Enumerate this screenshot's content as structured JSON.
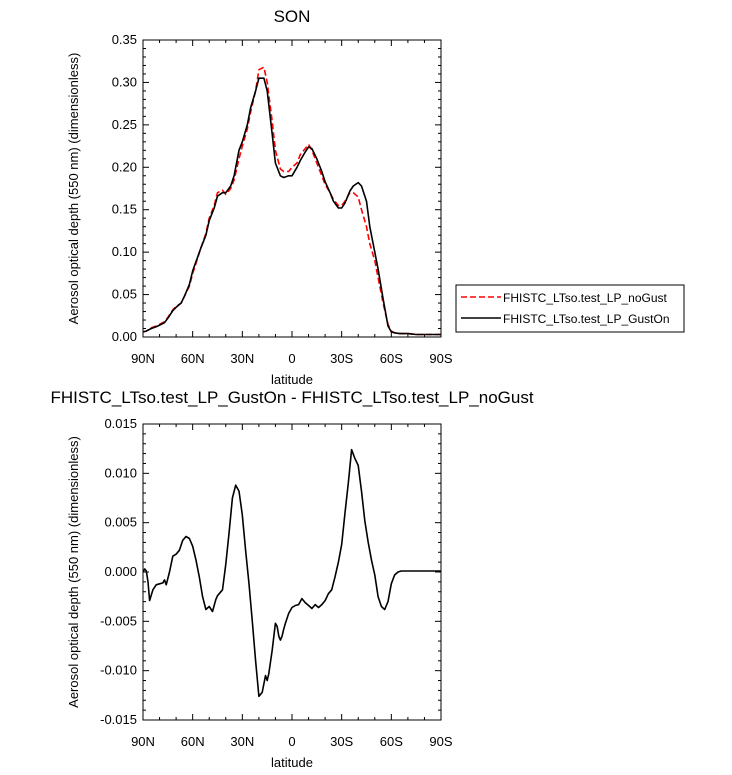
{
  "chart_data": [
    {
      "type": "line",
      "title": "SON",
      "xlabel": "latitude",
      "ylabel": "Aerosol optical depth (550 nm) (dimensionless)",
      "xlim": [
        90,
        -90
      ],
      "ylim": [
        0.0,
        0.35
      ],
      "xticks": [
        90,
        60,
        30,
        0,
        -30,
        -60,
        -90
      ],
      "xtick_labels": [
        "90N",
        "60N",
        "30N",
        "0",
        "30S",
        "60S",
        "90S"
      ],
      "yticks": [
        0.0,
        0.05,
        0.1,
        0.15,
        0.2,
        0.25,
        0.3,
        0.35
      ],
      "ytick_labels": [
        "0.00",
        "0.05",
        "0.10",
        "0.15",
        "0.20",
        "0.25",
        "0.30",
        "0.35"
      ],
      "legend_position": "right",
      "series": [
        {
          "name": "FHISTC_LTso.test_LP_noGust",
          "color": "#ff0000",
          "dash": "dashed",
          "x": [
            90,
            88,
            85,
            82,
            80,
            77,
            75,
            72,
            70,
            67,
            65,
            62,
            60,
            57,
            55,
            52,
            50,
            47,
            45,
            42,
            40,
            37,
            35,
            32,
            30,
            27,
            25,
            22,
            20,
            17,
            15,
            12,
            10,
            7,
            5,
            2,
            0,
            -3,
            -5,
            -8,
            -10,
            -12,
            -15,
            -18,
            -20,
            -23,
            -25,
            -28,
            -30,
            -32,
            -35,
            -37,
            -40,
            -42,
            -45,
            -47,
            -50,
            -52,
            -55,
            -58,
            -60,
            -62,
            -65,
            -70,
            -75,
            -80,
            -85,
            -90
          ],
          "y": [
            0.006,
            0.007,
            0.011,
            0.013,
            0.015,
            0.018,
            0.023,
            0.032,
            0.036,
            0.04,
            0.048,
            0.06,
            0.075,
            0.093,
            0.105,
            0.122,
            0.14,
            0.155,
            0.17,
            0.173,
            0.168,
            0.175,
            0.185,
            0.21,
            0.225,
            0.245,
            0.265,
            0.29,
            0.315,
            0.318,
            0.3,
            0.255,
            0.22,
            0.198,
            0.195,
            0.195,
            0.2,
            0.205,
            0.215,
            0.222,
            0.227,
            0.22,
            0.205,
            0.19,
            0.18,
            0.17,
            0.162,
            0.155,
            0.155,
            0.16,
            0.17,
            0.17,
            0.165,
            0.15,
            0.13,
            0.11,
            0.09,
            0.07,
            0.04,
            0.015,
            0.007,
            0.005,
            0.004,
            0.004,
            0.003,
            0.003,
            0.003,
            0.003
          ]
        },
        {
          "name": "FHISTC_LTso.test_LP_GustOn",
          "color": "#000000",
          "dash": "solid",
          "x": [
            90,
            88,
            85,
            82,
            80,
            77,
            75,
            72,
            70,
            67,
            65,
            62,
            60,
            57,
            55,
            52,
            50,
            47,
            45,
            42,
            40,
            37,
            35,
            32,
            30,
            27,
            25,
            22,
            20,
            17,
            15,
            12,
            10,
            7,
            5,
            2,
            0,
            -3,
            -5,
            -8,
            -10,
            -12,
            -15,
            -18,
            -20,
            -23,
            -25,
            -28,
            -30,
            -32,
            -35,
            -37,
            -40,
            -42,
            -45,
            -47,
            -50,
            -52,
            -55,
            -58,
            -60,
            -62,
            -65,
            -70,
            -75,
            -80,
            -85,
            -90
          ],
          "y": [
            0.006,
            0.007,
            0.01,
            0.012,
            0.014,
            0.017,
            0.022,
            0.031,
            0.035,
            0.04,
            0.048,
            0.062,
            0.078,
            0.094,
            0.105,
            0.12,
            0.137,
            0.152,
            0.166,
            0.17,
            0.17,
            0.178,
            0.19,
            0.22,
            0.23,
            0.25,
            0.27,
            0.29,
            0.305,
            0.305,
            0.29,
            0.24,
            0.205,
            0.19,
            0.188,
            0.19,
            0.19,
            0.2,
            0.208,
            0.218,
            0.224,
            0.222,
            0.21,
            0.195,
            0.183,
            0.17,
            0.16,
            0.152,
            0.152,
            0.158,
            0.172,
            0.178,
            0.182,
            0.178,
            0.16,
            0.13,
            0.1,
            0.08,
            0.045,
            0.013,
            0.006,
            0.005,
            0.004,
            0.004,
            0.003,
            0.003,
            0.003,
            0.003
          ]
        }
      ]
    },
    {
      "type": "line",
      "title": "FHISTC_LTso.test_LP_GustOn - FHISTC_LTso.test_LP_noGust",
      "xlabel": "latitude",
      "ylabel": "Aerosol optical depth (550 nm) (dimensionless)",
      "xlim": [
        90,
        -90
      ],
      "ylim": [
        -0.015,
        0.015
      ],
      "xticks": [
        90,
        60,
        30,
        0,
        -30,
        -60,
        -90
      ],
      "xtick_labels": [
        "90N",
        "60N",
        "30N",
        "0",
        "30S",
        "60S",
        "90S"
      ],
      "yticks": [
        -0.015,
        -0.01,
        -0.005,
        0.0,
        0.005,
        0.01,
        0.015
      ],
      "ytick_labels": [
        "-0.015",
        "-0.010",
        "-0.005",
        "0.000",
        "0.005",
        "0.010",
        "0.015"
      ],
      "series": [
        {
          "color": "#000000",
          "dash": "solid",
          "x": [
            90,
            89,
            88,
            87,
            86,
            84,
            82,
            80,
            78,
            77,
            76,
            74,
            72,
            70,
            68,
            66,
            64,
            62,
            60,
            58,
            56,
            54,
            52,
            50,
            48,
            46,
            45,
            44,
            42,
            40,
            38,
            36,
            34,
            32,
            30,
            28,
            26,
            24,
            22,
            20,
            18,
            16,
            15,
            14,
            12,
            10,
            9,
            8,
            7,
            6,
            5,
            4,
            2,
            0,
            -2,
            -4,
            -6,
            -8,
            -10,
            -12,
            -14,
            -16,
            -18,
            -20,
            -22,
            -24,
            -26,
            -28,
            -30,
            -32,
            -34,
            -36,
            -38,
            -40,
            -42,
            -44,
            -46,
            -48,
            -50,
            -52,
            -54,
            -56,
            -58,
            -60,
            -62,
            -64,
            -66,
            -68,
            -70,
            -75,
            -80,
            -85,
            -90
          ],
          "y": [
            0.0,
            0.0003,
            0.0001,
            -0.001,
            -0.0029,
            -0.0018,
            -0.0013,
            -0.0012,
            -0.0011,
            -0.0008,
            -0.0013,
            0.0,
            0.0016,
            0.0018,
            0.0022,
            0.0032,
            0.0036,
            0.0034,
            0.0026,
            0.0012,
            -0.0005,
            -0.0025,
            -0.0038,
            -0.0035,
            -0.004,
            -0.0028,
            -0.0024,
            -0.0022,
            -0.0018,
            0.0008,
            0.004,
            0.0075,
            0.0088,
            0.0082,
            0.0058,
            0.0022,
            -0.0012,
            -0.005,
            -0.009,
            -0.0126,
            -0.0122,
            -0.0105,
            -0.011,
            -0.0103,
            -0.008,
            -0.0052,
            -0.0055,
            -0.0065,
            -0.0069,
            -0.0065,
            -0.0058,
            -0.0052,
            -0.0042,
            -0.0036,
            -0.0034,
            -0.0033,
            -0.0027,
            -0.0031,
            -0.0034,
            -0.0037,
            -0.0033,
            -0.0036,
            -0.0033,
            -0.0029,
            -0.0022,
            -0.0018,
            -0.0005,
            0.001,
            0.0028,
            0.006,
            0.009,
            0.0124,
            0.0115,
            0.0108,
            0.0082,
            0.0052,
            0.003,
            0.0012,
            -0.0003,
            -0.0025,
            -0.0035,
            -0.0038,
            -0.003,
            -0.0012,
            -0.0003,
            0.0,
            0.0001,
            0.0001,
            0.0001,
            0.0001,
            0.0001,
            0.0001,
            0.0001
          ]
        }
      ]
    }
  ]
}
